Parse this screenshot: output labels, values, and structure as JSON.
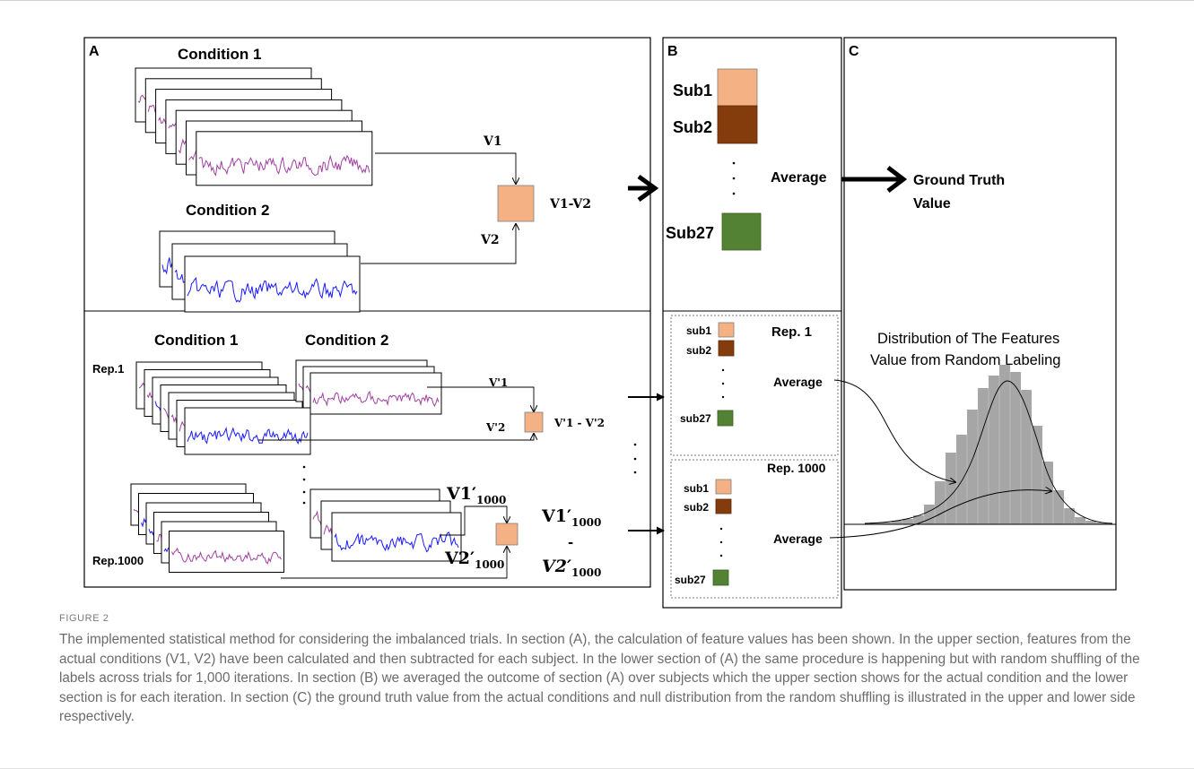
{
  "panel_A": {
    "label": "A",
    "upper": {
      "condition1": "Condition 1",
      "condition2": "Condition 2",
      "v1": "V1",
      "v2": "V2",
      "diff": "V1-V2"
    },
    "lower": {
      "condition1": "Condition 1",
      "condition2": "Condition 2",
      "rep1": "Rep.1",
      "rep1000": "Rep.1000",
      "vp1": "V'1",
      "vp2": "V'2",
      "diff_p": "V'1 - V'2",
      "v1_1000_main": "V1′",
      "v1_1000_sub": "1000",
      "v2_1000_main": "V2′",
      "v2_1000_sub": "1000",
      "diff_1000_top_main": "V1′",
      "diff_1000_top_sub": "1000",
      "diff_1000_dash": "-",
      "diff_1000_bot_main": "V2′",
      "diff_1000_bot_sub": "1000"
    }
  },
  "panel_B": {
    "label": "B",
    "upper": {
      "sub1": "Sub1",
      "sub2": "Sub2",
      "sub27": "Sub27",
      "average": "Average"
    },
    "rep1": {
      "title": "Rep. 1",
      "sub1": "sub1",
      "sub2": "sub2",
      "sub27": "sub27",
      "average": "Average"
    },
    "rep1000": {
      "title": "Rep. 1000",
      "sub1": "sub1",
      "sub2": "sub2",
      "sub27": "sub27",
      "average": "Average"
    }
  },
  "panel_C": {
    "label": "C",
    "ground_truth_line1": "Ground Truth",
    "ground_truth_line2": "Value",
    "dist_title_line1": "Distribution of The Features",
    "dist_title_line2": "Value from Random Labeling"
  },
  "colors": {
    "sub1": "#f4b183",
    "sub2": "#843c0c",
    "sub27": "#548235",
    "purple_signal": "#a040a0",
    "blue_signal": "#1a1aff",
    "histogram": "#a6a6a6"
  },
  "caption": {
    "label": "FIGURE 2",
    "text": "The implemented statistical method for considering the imbalanced trials. In section (A), the calculation of feature values has been shown. In the upper section, features from the actual conditions (V1, V2) have been calculated and then subtracted for each subject. In the lower section of (A) the same procedure is happening but with random shuffling of the labels across trials for 1,000 iterations. In section (B) we averaged the outcome of section (A) over subjects which the upper section shows for the actual condition and the lower section is for each iteration. In section (C) the ground truth value from the actual conditions and null distribution from the random shuffling is illustrated in the upper and lower side respectively."
  }
}
